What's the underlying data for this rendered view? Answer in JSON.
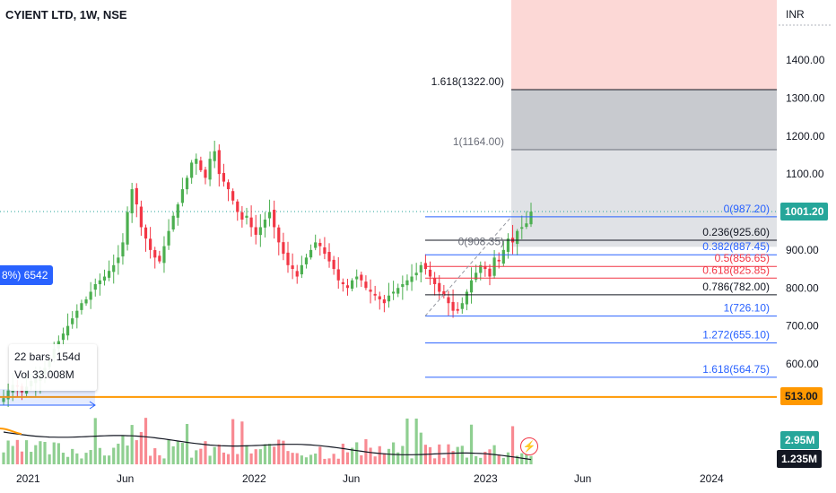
{
  "header": {
    "symbol_title": "CYIENT LTD, 1W, NSE"
  },
  "price_axis": {
    "currency": "INR",
    "ticks": [
      "1400.00",
      "1300.00",
      "1200.00",
      "1100.00",
      "1000.00",
      "900.00",
      "800.00",
      "700.00",
      "600.00"
    ],
    "last_price": "1001.20",
    "level_513": "513.00",
    "volume_label": "2.95M",
    "volume_ma_label": "1.235M"
  },
  "time_axis": {
    "ticks": [
      "2021",
      "Jun",
      "2022",
      "Jun",
      "2023",
      "Jun",
      "2024"
    ]
  },
  "fib_labels": {
    "ext_1618_top": "1.618(1322.00)",
    "ext_1_top": "1(1164.00)",
    "zero_987": "0(987.20)",
    "zero_908": "0(908.35)",
    "r0236": "0.236(925.60)",
    "r0382": "0.382(887.45)",
    "r05": "0.5(856.65)",
    "r0618": "0.618(825.85)",
    "r0786": "0.786(782.00)",
    "r1": "1(726.10)",
    "r1272": "1.272(655.10)",
    "r1618": "1.618(564.75)"
  },
  "left_badge": "8%) 6542",
  "measure_box": {
    "line1": "22 bars, 154d",
    "line2": "Vol 33.008M"
  },
  "colors": {
    "up": "#26a69a",
    "candle_up": "#4caf50",
    "down": "#f23645",
    "blue": "#2962ff",
    "orange": "#ff9800",
    "red_zone": "#fcd8d6",
    "gray_zone": "#d1d4dc"
  },
  "chart_data": {
    "type": "candlestick",
    "title": "CYIENT LTD, 1W, NSE",
    "y_unit": "INR",
    "ylim": [
      480,
      1450
    ],
    "x_ticks": [
      "2021",
      "Jun",
      "2022",
      "Jun",
      "2023",
      "Jun",
      "2024"
    ],
    "last_close": 1001.2,
    "horizontal_level": 513.0,
    "fib_retracement_levels": [
      {
        "ratio": "0",
        "price": 908.35
      },
      {
        "ratio": "0.236",
        "price": 925.6
      },
      {
        "ratio": "0.382",
        "price": 887.45
      },
      {
        "ratio": "0.5",
        "price": 856.65
      },
      {
        "ratio": "0.618",
        "price": 825.85
      },
      {
        "ratio": "0.786",
        "price": 782.0
      },
      {
        "ratio": "1",
        "price": 726.1
      },
      {
        "ratio": "1.272",
        "price": 655.1
      },
      {
        "ratio": "1.618",
        "price": 564.75
      }
    ],
    "fib_extension_levels": [
      {
        "ratio": "0",
        "price": 987.2
      },
      {
        "ratio": "1",
        "price": 1164.0
      },
      {
        "ratio": "1.618",
        "price": 1322.0
      }
    ],
    "weekly_closes_approx": [
      510,
      530,
      545,
      540,
      525,
      540,
      555,
      560,
      575,
      590,
      610,
      640,
      660,
      680,
      700,
      720,
      740,
      760,
      770,
      790,
      810,
      820,
      830,
      845,
      860,
      880,
      920,
      1000,
      1060,
      1020,
      960,
      930,
      900,
      880,
      870,
      910,
      950,
      990,
      1020,
      1060,
      1090,
      1130,
      1140,
      1110,
      1090,
      1140,
      1160,
      1100,
      1080,
      1060,
      1030,
      1000,
      980,
      990,
      960,
      940,
      960,
      980,
      1000,
      960,
      920,
      890,
      860,
      850,
      830,
      860,
      880,
      900,
      920,
      910,
      890,
      870,
      850,
      820,
      810,
      800,
      820,
      830,
      820,
      800,
      790,
      780,
      770,
      760,
      780,
      790,
      800,
      810,
      820,
      830,
      840,
      860,
      850,
      830,
      810,
      790,
      780,
      760,
      740,
      740,
      760,
      790,
      820,
      840,
      860,
      850,
      830,
      880,
      870,
      900,
      930,
      920,
      950,
      960,
      970,
      1001
    ],
    "volume_unit": "M",
    "volume_last": 2.95,
    "volume_ma_last": 1.235
  }
}
